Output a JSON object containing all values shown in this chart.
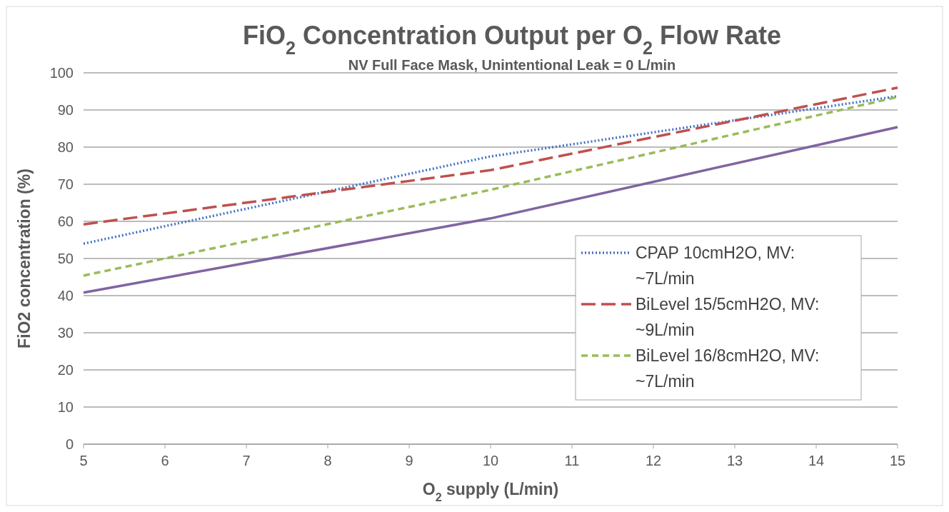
{
  "chart_data": {
    "type": "line",
    "title": "FiO$_{2}$ Concentration Output per O$_{2}$ Flow Rate",
    "subtitle": "NV Full Face Mask, Unintentional Leak = 0 L/min",
    "xlabel": "O$_{2}$ supply (L/min)",
    "ylabel": "FiO2 concentration (%)",
    "x": [
      5,
      10,
      15
    ],
    "xlim": [
      5,
      15
    ],
    "xticks": [
      5,
      6,
      7,
      8,
      9,
      10,
      11,
      12,
      13,
      14,
      15
    ],
    "ylim": [
      0,
      100
    ],
    "yticks": [
      0,
      10,
      20,
      30,
      40,
      50,
      60,
      70,
      80,
      90,
      100
    ],
    "grid": "y",
    "legend": "right",
    "marker": "none",
    "series": [
      {
        "name": "CPAP 10cmH2O, MV: ~7L/min",
        "color": "#4472c4",
        "line_style": "dotted",
        "values": [
          54,
          77.5,
          93.7
        ]
      },
      {
        "name": "BiLevel 15/5cmH2O, MV: ~9L/min",
        "color": "#c0504d",
        "line_style": "longdash",
        "values": [
          59.2,
          73.8,
          96
        ]
      },
      {
        "name": "BiLevel 16/8cmH2O, MV: ~7L/min",
        "color": "#9bbb59",
        "line_style": "dashed",
        "values": [
          45.4,
          68.5,
          93.5
        ]
      },
      {
        "color": "#8064a2",
        "line_style": "solid",
        "values": [
          40.8,
          60.8,
          85.4
        ]
      }
    ]
  }
}
